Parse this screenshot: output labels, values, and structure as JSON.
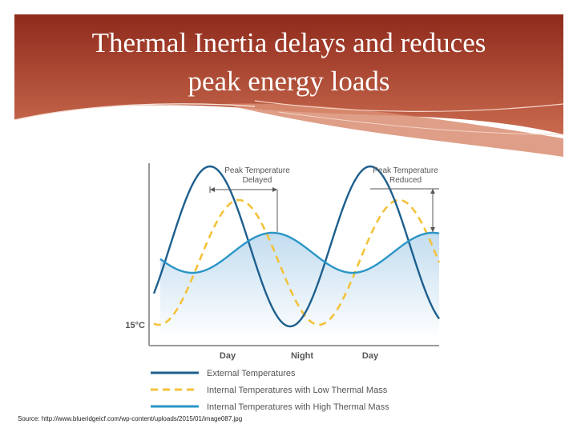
{
  "slide": {
    "title_line1": "Thermal Inertia delays and reduces",
    "title_line2": "peak energy loads",
    "source": "Source: http://www.blueridgeicf.com/wp-content/uploads/2015/01/image087.jpg"
  },
  "colors": {
    "header_dark": "#8f2a1c",
    "header_light": "#c96a4e",
    "external": "#1d5f8e",
    "low_mass": "#f3c23a",
    "high_mass": "#2a95c6",
    "fill": "#bcd9ee",
    "axis": "#9a9a9a"
  },
  "chart_data": {
    "type": "line",
    "ytick_label": "15°C",
    "x_tick_labels": [
      "Day",
      "Night",
      "Day"
    ],
    "annotations": [
      "Peak Temperature\nDelayed",
      "Peak Temperature\nReduced"
    ],
    "series": [
      {
        "name": "External Temperatures",
        "style": "solid",
        "amplitude": "large",
        "phase": "leading"
      },
      {
        "name": "Internal Temperatures with Low Thermal Mass",
        "style": "dashed",
        "amplitude": "large",
        "phase": "slightly delayed"
      },
      {
        "name": "Internal Temperatures with High Thermal Mass",
        "style": "solid",
        "amplitude": "small",
        "phase": "delayed"
      }
    ]
  }
}
